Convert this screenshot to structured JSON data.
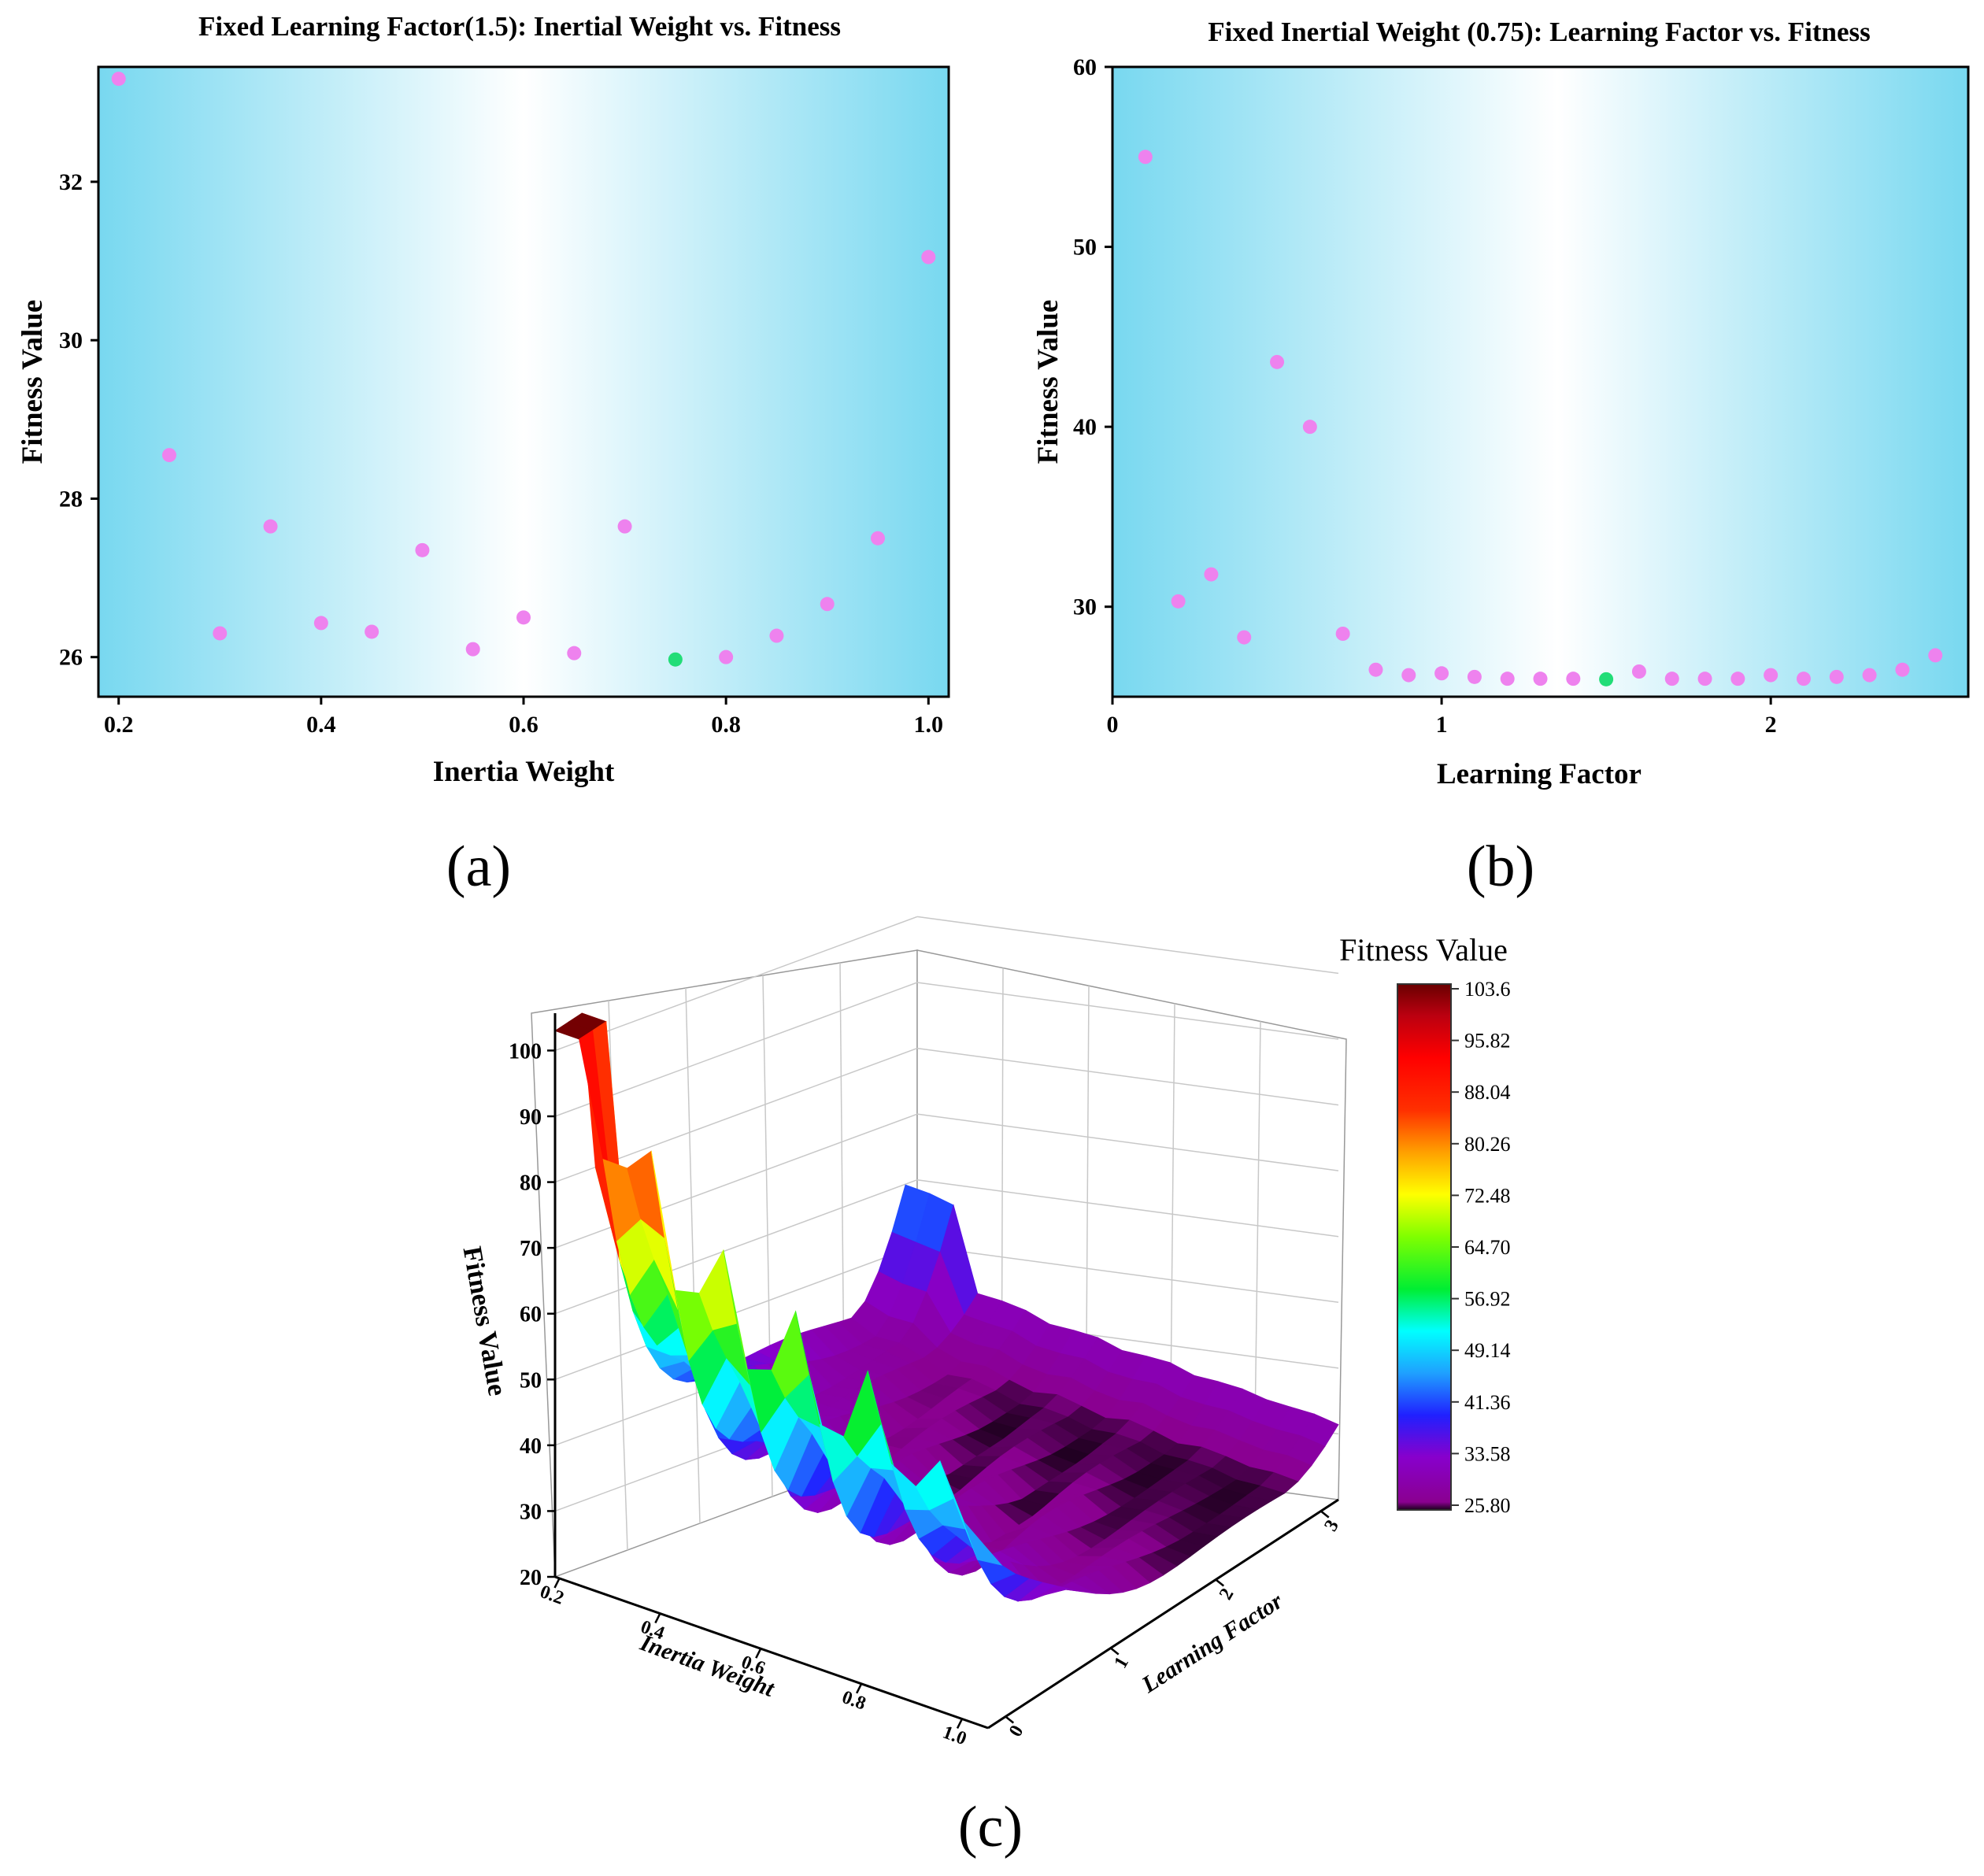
{
  "figure_labels": [
    "(a)",
    "(b)",
    "(c)"
  ],
  "colors": {
    "point": "#ee82ee",
    "best_point": "#22dd77",
    "bg_edge": "#78d8f0",
    "bg_center": "#ffffff"
  },
  "chart_data": [
    {
      "id": "a",
      "type": "scatter",
      "title": "Fixed Learning Factor(1.5): Inertial Weight vs. Fitness",
      "xlabel": "Inertia Weight",
      "ylabel": "Fitness Value",
      "xlim": [
        0.18,
        1.02
      ],
      "ylim": [
        25.5,
        33.45
      ],
      "xticks": [
        0.2,
        0.4,
        0.6,
        0.8,
        1.0
      ],
      "xtick_labels": [
        "0.2",
        "0.4",
        "0.6",
        "0.8",
        "1.0"
      ],
      "yticks": [
        26,
        28,
        30,
        32
      ],
      "ytick_labels": [
        "26",
        "28",
        "30",
        "32"
      ],
      "x": [
        0.2,
        0.25,
        0.3,
        0.35,
        0.4,
        0.45,
        0.5,
        0.55,
        0.6,
        0.65,
        0.7,
        0.75,
        0.8,
        0.85,
        0.9,
        0.95,
        1.0
      ],
      "y": [
        33.3,
        28.55,
        26.3,
        27.65,
        26.43,
        26.32,
        27.35,
        26.1,
        26.5,
        26.05,
        27.65,
        25.97,
        26.0,
        26.27,
        26.67,
        27.5,
        31.05
      ],
      "highlight_index": 11
    },
    {
      "id": "b",
      "type": "scatter",
      "title": "Fixed Inertial Weight (0.75): Learning Factor vs. Fitness",
      "xlabel": "Learning Factor",
      "ylabel": "Fitness Value",
      "xlim": [
        0,
        2.6
      ],
      "ylim": [
        25,
        60
      ],
      "xticks": [
        0,
        1,
        2
      ],
      "xtick_labels": [
        "0",
        "1",
        "2"
      ],
      "yticks": [
        30,
        40,
        50,
        60
      ],
      "ytick_labels": [
        "30",
        "40",
        "50",
        "60"
      ],
      "x": [
        0.1,
        0.2,
        0.3,
        0.4,
        0.5,
        0.6,
        0.7,
        0.8,
        0.9,
        1.0,
        1.1,
        1.2,
        1.3,
        1.4,
        1.5,
        1.6,
        1.7,
        1.8,
        1.9,
        2.0,
        2.1,
        2.2,
        2.3,
        2.4,
        2.5
      ],
      "y": [
        55,
        30.3,
        31.8,
        28.3,
        43.6,
        40,
        28.5,
        26.5,
        26.2,
        26.3,
        26.1,
        26.0,
        26.0,
        26.0,
        25.97,
        26.4,
        26.0,
        26.0,
        26.0,
        26.2,
        26.0,
        26.1,
        26.2,
        26.5,
        27.3
      ],
      "highlight_index": 14
    },
    {
      "id": "c",
      "type": "surface",
      "title": "",
      "xlabel": "Inertia Weight",
      "ylabel": "Learning Factor",
      "zlabel": "Fitness Value",
      "x_ticks": [
        "0.2",
        "0.4",
        "0.6",
        "0.8",
        "1.0"
      ],
      "y_ticks": [
        "0",
        "1",
        "2",
        "3"
      ],
      "z_ticks": [
        "20",
        "30",
        "40",
        "50",
        "60",
        "70",
        "80",
        "90",
        "100"
      ],
      "zlim": [
        20,
        104
      ],
      "colorbar": {
        "title": "Fitness Value",
        "min": 25.8,
        "max": 103.6,
        "labels": [
          "103.6",
          "95.82",
          "88.04",
          "80.26",
          "72.48",
          "64.70",
          "56.92",
          "49.14",
          "41.36",
          "33.58",
          "25.80"
        ]
      }
    }
  ]
}
